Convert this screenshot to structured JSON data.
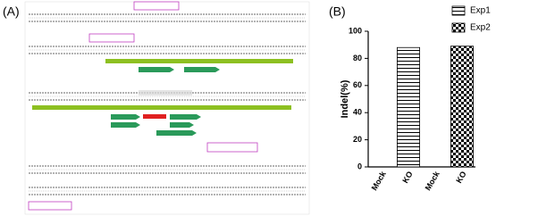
{
  "panels": {
    "a_label": "(A)",
    "b_label": "(B)"
  },
  "chart_data": {
    "type": "bar",
    "y_label": "Indel(%)",
    "categories": [
      "Mock",
      "KO",
      "Mock",
      "KO"
    ],
    "series": [
      {
        "name": "Exp1",
        "color": "#000000",
        "pattern": "horizontal-stripes",
        "values": [
          0,
          88,
          null,
          null
        ]
      },
      {
        "name": "Exp2",
        "color": "#000000",
        "pattern": "checkerboard",
        "values": [
          null,
          null,
          0,
          89
        ]
      }
    ],
    "ylim": [
      0,
      100
    ],
    "yticks": [
      0,
      20,
      40,
      60,
      80,
      100
    ],
    "legend": "top-right"
  }
}
